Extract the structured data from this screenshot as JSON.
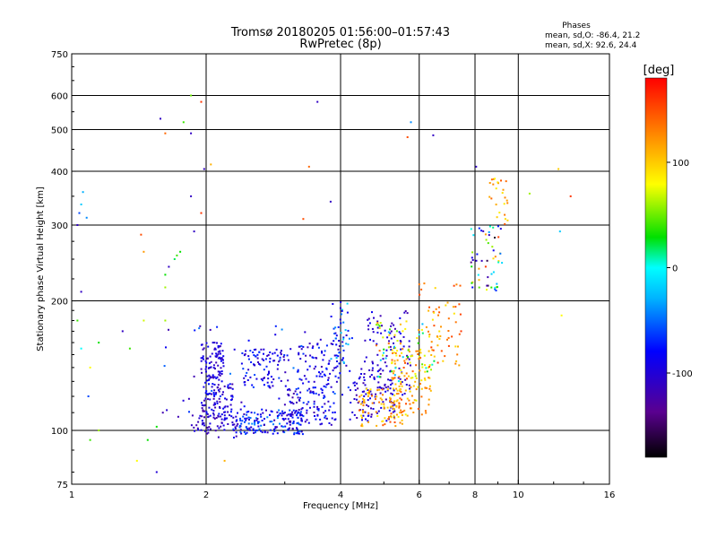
{
  "title_line1": "Tromsø 20180205 01:56:00–01:57:43",
  "title_line2": "RwPretec (8p)",
  "stats": {
    "header": "Phases",
    "line_o": "mean, sd,O: -86.4, 21.2",
    "line_x": "mean, sd,X:  92.6, 24.4"
  },
  "colorbar": {
    "label": "[deg]",
    "ticks": [
      {
        "value": 100,
        "label": "100"
      },
      {
        "value": 0,
        "label": "0"
      },
      {
        "value": -100,
        "label": "-100"
      }
    ],
    "range": [
      -180,
      180
    ]
  },
  "chart_data": {
    "type": "scatter",
    "xlabel": "Frequency [MHz]",
    "ylabel": "Stationary phase Virtual Height [km]",
    "x_scale": "log",
    "y_scale": "log",
    "xlim": [
      1,
      16
    ],
    "ylim": [
      75,
      750
    ],
    "grid": true,
    "x_ticks": [
      {
        "value": 1,
        "label": "1"
      },
      {
        "value": 2,
        "label": "2"
      },
      {
        "value": 4,
        "label": "4"
      },
      {
        "value": 6,
        "label": "6"
      },
      {
        "value": 8,
        "label": "8"
      },
      {
        "value": 10,
        "label": "10"
      },
      {
        "value": 16,
        "label": "16"
      }
    ],
    "y_ticks": [
      {
        "value": 75,
        "label": "75"
      },
      {
        "value": 100,
        "label": "100"
      },
      {
        "value": 200,
        "label": "200"
      },
      {
        "value": 300,
        "label": "300"
      },
      {
        "value": 400,
        "label": "400"
      },
      {
        "value": 500,
        "label": "500"
      },
      {
        "value": 600,
        "label": "600"
      },
      {
        "value": 750,
        "label": "750"
      }
    ],
    "x_grid": [
      2,
      4,
      6,
      8,
      10
    ],
    "y_grid": [
      100,
      200,
      300,
      400,
      500,
      600
    ],
    "points": [
      [
        1.03,
        300,
        -110
      ],
      [
        1.04,
        320,
        -60
      ],
      [
        1.05,
        335,
        -20
      ],
      [
        1.06,
        358,
        -30
      ],
      [
        1.08,
        312,
        -40
      ],
      [
        1.05,
        210,
        -110
      ],
      [
        1.03,
        180,
        40
      ],
      [
        1.05,
        155,
        0
      ],
      [
        1.09,
        120,
        -60
      ],
      [
        1.1,
        95,
        40
      ],
      [
        1.15,
        160,
        30
      ],
      [
        1.3,
        170,
        -110
      ],
      [
        1.35,
        155,
        40
      ],
      [
        1.43,
        285,
        150
      ],
      [
        1.48,
        95,
        30
      ],
      [
        1.55,
        102,
        30
      ],
      [
        1.58,
        530,
        -110
      ],
      [
        1.62,
        490,
        140
      ],
      [
        1.65,
        240,
        -110
      ],
      [
        1.7,
        250,
        20
      ],
      [
        1.72,
        255,
        40
      ],
      [
        1.75,
        260,
        30
      ],
      [
        1.78,
        520,
        40
      ],
      [
        1.6,
        110,
        -120
      ],
      [
        1.62,
        230,
        30
      ],
      [
        1.62,
        180,
        60
      ],
      [
        1.85,
        600,
        50
      ],
      [
        1.88,
        290,
        -110
      ],
      [
        1.95,
        580,
        160
      ],
      [
        1.95,
        320,
        160
      ],
      [
        1.98,
        405,
        -110
      ],
      [
        1.85,
        490,
        -110
      ],
      [
        1.85,
        350,
        -110
      ],
      [
        2.05,
        415,
        110
      ],
      [
        3.55,
        580,
        -110
      ],
      [
        3.4,
        410,
        140
      ],
      [
        3.3,
        310,
        150
      ],
      [
        3.8,
        340,
        -110
      ],
      [
        5.65,
        480,
        150
      ],
      [
        5.75,
        520,
        -40
      ],
      [
        6.45,
        485,
        -110
      ],
      [
        8.05,
        410,
        -110
      ],
      [
        12.4,
        290,
        -20
      ],
      [
        12.3,
        405,
        100
      ],
      [
        13.1,
        350,
        160
      ],
      [
        10.6,
        355,
        60
      ],
      [
        12.5,
        185,
        80
      ],
      [
        2.2,
        85,
        110
      ],
      [
        1.4,
        85,
        80
      ],
      [
        1.55,
        80,
        -100
      ],
      [
        1.45,
        260,
        120
      ],
      [
        1.62,
        215,
        60
      ],
      [
        1.1,
        140,
        80
      ],
      [
        1.45,
        180,
        70
      ],
      [
        1.15,
        100,
        60
      ]
    ],
    "clusters": [
      {
        "x": [
          1.95,
          2.2
        ],
        "y": [
          130,
          160
        ],
        "c": [
          -120,
          -80
        ],
        "n": 90
      },
      {
        "x": [
          1.95,
          2.3
        ],
        "y": [
          105,
          130
        ],
        "c": [
          -125,
          -70
        ],
        "n": 90
      },
      {
        "x": [
          1.85,
          2.4
        ],
        "y": [
          96,
          112
        ],
        "c": [
          -125,
          -85
        ],
        "n": 60
      },
      {
        "x": [
          2.3,
          3.3
        ],
        "y": [
          98,
          112
        ],
        "c": [
          -120,
          -40
        ],
        "n": 150
      },
      {
        "x": [
          2.4,
          3.1
        ],
        "y": [
          125,
          155
        ],
        "c": [
          -120,
          -60
        ],
        "n": 90
      },
      {
        "x": [
          3.0,
          3.9
        ],
        "y": [
          103,
          125
        ],
        "c": [
          -125,
          -60
        ],
        "n": 100
      },
      {
        "x": [
          3.2,
          4.0
        ],
        "y": [
          125,
          160
        ],
        "c": [
          -120,
          -60
        ],
        "n": 80
      },
      {
        "x": [
          3.8,
          4.2
        ],
        "y": [
          140,
          200
        ],
        "c": [
          -110,
          -10
        ],
        "n": 45
      },
      {
        "x": [
          4.2,
          5.3
        ],
        "y": [
          105,
          140
        ],
        "c": [
          -125,
          -85
        ],
        "n": 100
      },
      {
        "x": [
          4.5,
          5.8
        ],
        "y": [
          120,
          190
        ],
        "c": [
          -125,
          -80
        ],
        "n": 90
      },
      {
        "x": [
          4.4,
          5.5
        ],
        "y": [
          102,
          125
        ],
        "c": [
          80,
          150
        ],
        "n": 90
      },
      {
        "x": [
          5.2,
          6.4
        ],
        "y": [
          108,
          155
        ],
        "c": [
          70,
          150
        ],
        "n": 120
      },
      {
        "x": [
          4.8,
          6.5
        ],
        "y": [
          130,
          180
        ],
        "c": [
          -30,
          150
        ],
        "n": 60
      },
      {
        "x": [
          6.0,
          7.5
        ],
        "y": [
          140,
          220
        ],
        "c": [
          90,
          160
        ],
        "n": 60
      },
      {
        "x": [
          7.8,
          9.2
        ],
        "y": [
          210,
          300
        ],
        "c": [
          -170,
          160
        ],
        "n": 55
      },
      {
        "x": [
          8.6,
          9.5
        ],
        "y": [
          300,
          385
        ],
        "c": [
          80,
          150
        ],
        "n": 25
      },
      {
        "x": [
          1.6,
          4.5
        ],
        "y": [
          105,
          175
        ],
        "c": [
          -120,
          -40
        ],
        "n": 60
      }
    ]
  }
}
